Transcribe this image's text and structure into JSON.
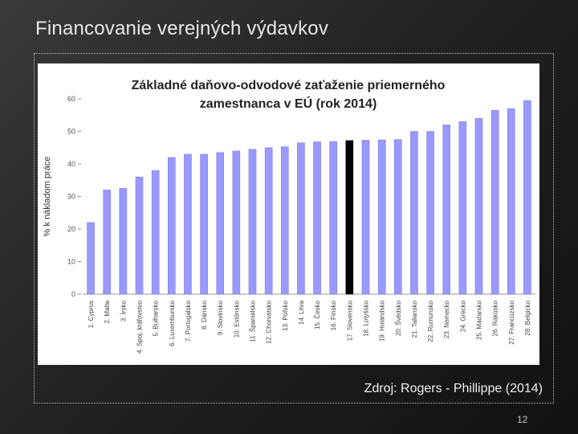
{
  "slide": {
    "title": "Financovanie verejných výdavkov",
    "source": "Zdroj: Rogers - Phillippe (2014)",
    "page_number": "12"
  },
  "chart_data": {
    "type": "bar",
    "title_line1": "Základné daňovo-odvodové zaťaženie priemerného",
    "title_line2": "zamestnanca v EÚ (rok 2014)",
    "ylabel": "% k nákladom práce",
    "xlabel": "",
    "ylim": [
      0,
      60
    ],
    "yticks": [
      0,
      10,
      20,
      30,
      40,
      50,
      60
    ],
    "grid": false,
    "bar_color": "#9999ff",
    "highlight_color": "#000000",
    "highlight_index": 16,
    "categories": [
      "1. Cyprus",
      "2. Malta",
      "3. Írsko",
      "4. Spoj. kráľovstvo",
      "5. Bulharsko",
      "6. Luxembursko",
      "7. Portugalsko",
      "8. Dánsko",
      "9. Slovinsko",
      "10. Estónsko",
      "11. Španielsko",
      "12. Chorvátsko",
      "13. Poľsko",
      "14. Litva",
      "15. Česko",
      "16. Fínsko",
      "17. Slovensko",
      "18. Lotyšsko",
      "19. Holandsko",
      "20. Švédsko",
      "21. Taliansko",
      "22. Rumunsko",
      "23. Nemecko",
      "24. Grécko",
      "25. Maďarsko",
      "26. Rakúsko",
      "27. Francúzsko",
      "28. Belgicko"
    ],
    "values": [
      22,
      32,
      32.5,
      36,
      38,
      42,
      43,
      43,
      43.5,
      44,
      44.5,
      45,
      45.3,
      46.5,
      46.8,
      46.9,
      47.2,
      47.3,
      47.4,
      47.5,
      50,
      50,
      52,
      53,
      54,
      56.5,
      57,
      59.5
    ]
  }
}
